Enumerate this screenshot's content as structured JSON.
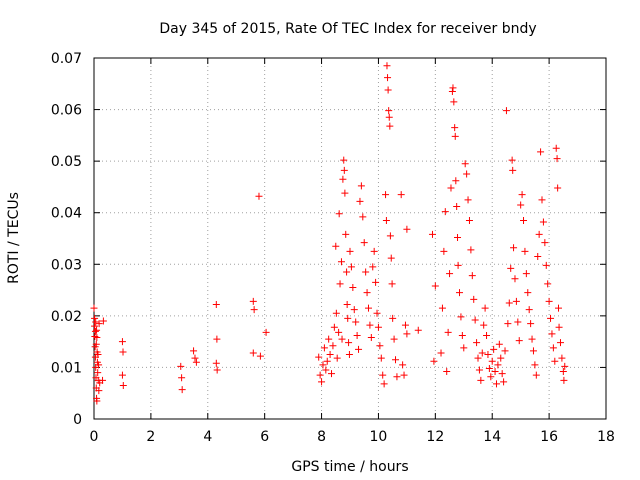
{
  "chart_data": {
    "type": "scatter",
    "title": "Day 345 of 2015, Rate Of TEC Index for receiver bndy",
    "xlabel": "GPS time / hours",
    "ylabel": "ROTI / TECUs",
    "xlim": [
      0,
      18
    ],
    "ylim": [
      0,
      0.07
    ],
    "xticks": [
      0,
      2,
      4,
      6,
      8,
      10,
      12,
      14,
      16,
      18
    ],
    "yticks": [
      0,
      0.01,
      0.02,
      0.03,
      0.04,
      0.05,
      0.06,
      0.07
    ],
    "ytick_labels": [
      "0",
      "0.01",
      "0.02",
      "0.03",
      "0.04",
      "0.05",
      "0.06",
      "0.07"
    ],
    "grid": true,
    "marker": "+",
    "color": "#ff0000",
    "series": [
      {
        "name": "ROTI",
        "points": [
          [
            0.0,
            0.0215
          ],
          [
            0.02,
            0.018
          ],
          [
            0.03,
            0.016
          ],
          [
            0.04,
            0.014
          ],
          [
            0.05,
            0.012
          ],
          [
            0.06,
            0.01
          ],
          [
            0.07,
            0.008
          ],
          [
            0.08,
            0.006
          ],
          [
            0.09,
            0.004
          ],
          [
            0.1,
            0.0035
          ],
          [
            0.02,
            0.0195
          ],
          [
            0.05,
            0.017
          ],
          [
            0.08,
            0.0145
          ],
          [
            0.11,
            0.013
          ],
          [
            0.12,
            0.011
          ],
          [
            0.13,
            0.009
          ],
          [
            0.15,
            0.0075
          ],
          [
            0.17,
            0.0055
          ],
          [
            0.06,
            0.0188
          ],
          [
            0.09,
            0.0172
          ],
          [
            0.1,
            0.0158
          ],
          [
            0.14,
            0.0125
          ],
          [
            0.16,
            0.0105
          ],
          [
            0.18,
            0.0185
          ],
          [
            0.2,
            0.007
          ],
          [
            0.3,
            0.0075
          ],
          [
            0.33,
            0.019
          ],
          [
            1.0,
            0.015
          ],
          [
            1.02,
            0.013
          ],
          [
            1.0,
            0.0085
          ],
          [
            1.03,
            0.0065
          ],
          [
            3.05,
            0.0102
          ],
          [
            3.08,
            0.008
          ],
          [
            3.1,
            0.0057
          ],
          [
            3.5,
            0.0132
          ],
          [
            3.55,
            0.0118
          ],
          [
            3.6,
            0.011
          ],
          [
            4.3,
            0.0222
          ],
          [
            4.32,
            0.0155
          ],
          [
            4.3,
            0.0108
          ],
          [
            4.33,
            0.0095
          ],
          [
            5.6,
            0.0228
          ],
          [
            5.63,
            0.0212
          ],
          [
            5.6,
            0.0128
          ],
          [
            5.8,
            0.0432
          ],
          [
            5.85,
            0.0122
          ],
          [
            6.05,
            0.0168
          ],
          [
            7.9,
            0.012
          ],
          [
            7.95,
            0.0085
          ],
          [
            8.0,
            0.0072
          ],
          [
            8.05,
            0.0105
          ],
          [
            8.1,
            0.0138
          ],
          [
            8.15,
            0.0095
          ],
          [
            8.2,
            0.0112
          ],
          [
            8.25,
            0.0155
          ],
          [
            8.3,
            0.0125
          ],
          [
            8.35,
            0.0088
          ],
          [
            8.4,
            0.0142
          ],
          [
            8.45,
            0.0178
          ],
          [
            8.5,
            0.0335
          ],
          [
            8.52,
            0.0205
          ],
          [
            8.55,
            0.0118
          ],
          [
            8.6,
            0.0168
          ],
          [
            8.62,
            0.0398
          ],
          [
            8.65,
            0.0262
          ],
          [
            8.7,
            0.0305
          ],
          [
            8.72,
            0.0155
          ],
          [
            8.75,
            0.0465
          ],
          [
            8.78,
            0.0502
          ],
          [
            8.8,
            0.0482
          ],
          [
            8.82,
            0.0438
          ],
          [
            8.85,
            0.0358
          ],
          [
            8.88,
            0.0285
          ],
          [
            8.9,
            0.0222
          ],
          [
            8.92,
            0.0195
          ],
          [
            8.95,
            0.0148
          ],
          [
            8.98,
            0.0125
          ],
          [
            9.0,
            0.0325
          ],
          [
            9.05,
            0.0295
          ],
          [
            9.1,
            0.0255
          ],
          [
            9.15,
            0.0212
          ],
          [
            9.2,
            0.0188
          ],
          [
            9.25,
            0.0162
          ],
          [
            9.3,
            0.0135
          ],
          [
            9.35,
            0.0422
          ],
          [
            9.4,
            0.0452
          ],
          [
            9.45,
            0.0392
          ],
          [
            9.5,
            0.0342
          ],
          [
            9.55,
            0.0285
          ],
          [
            9.6,
            0.0245
          ],
          [
            9.65,
            0.0215
          ],
          [
            9.7,
            0.0182
          ],
          [
            9.75,
            0.0158
          ],
          [
            9.8,
            0.0295
          ],
          [
            9.85,
            0.0325
          ],
          [
            9.9,
            0.0265
          ],
          [
            9.95,
            0.0205
          ],
          [
            10.0,
            0.0178
          ],
          [
            10.05,
            0.0142
          ],
          [
            10.1,
            0.0118
          ],
          [
            10.15,
            0.0085
          ],
          [
            10.2,
            0.0068
          ],
          [
            10.25,
            0.0435
          ],
          [
            10.28,
            0.0385
          ],
          [
            10.3,
            0.0685
          ],
          [
            10.32,
            0.0662
          ],
          [
            10.34,
            0.0638
          ],
          [
            10.36,
            0.0598
          ],
          [
            10.38,
            0.0585
          ],
          [
            10.4,
            0.0568
          ],
          [
            10.42,
            0.0355
          ],
          [
            10.45,
            0.0312
          ],
          [
            10.48,
            0.0262
          ],
          [
            10.5,
            0.0195
          ],
          [
            10.55,
            0.0155
          ],
          [
            10.6,
            0.0115
          ],
          [
            10.65,
            0.0082
          ],
          [
            10.8,
            0.0435
          ],
          [
            10.85,
            0.0105
          ],
          [
            10.9,
            0.0085
          ],
          [
            10.95,
            0.0182
          ],
          [
            11.0,
            0.0368
          ],
          [
            11.0,
            0.0165
          ],
          [
            11.4,
            0.0172
          ],
          [
            11.9,
            0.0358
          ],
          [
            11.95,
            0.0112
          ],
          [
            12.0,
            0.0258
          ],
          [
            12.2,
            0.0128
          ],
          [
            12.25,
            0.0215
          ],
          [
            12.3,
            0.0325
          ],
          [
            12.35,
            0.0402
          ],
          [
            12.4,
            0.0092
          ],
          [
            12.45,
            0.0168
          ],
          [
            12.5,
            0.0282
          ],
          [
            12.55,
            0.0448
          ],
          [
            12.6,
            0.0635
          ],
          [
            12.62,
            0.0642
          ],
          [
            12.65,
            0.0615
          ],
          [
            12.68,
            0.0565
          ],
          [
            12.7,
            0.0548
          ],
          [
            12.72,
            0.0462
          ],
          [
            12.75,
            0.0412
          ],
          [
            12.78,
            0.0352
          ],
          [
            12.8,
            0.0298
          ],
          [
            12.85,
            0.0245
          ],
          [
            12.9,
            0.0198
          ],
          [
            12.95,
            0.0162
          ],
          [
            13.0,
            0.0138
          ],
          [
            13.05,
            0.0495
          ],
          [
            13.1,
            0.0475
          ],
          [
            13.15,
            0.0425
          ],
          [
            13.2,
            0.0385
          ],
          [
            13.25,
            0.0328
          ],
          [
            13.3,
            0.0278
          ],
          [
            13.35,
            0.0232
          ],
          [
            13.4,
            0.0192
          ],
          [
            13.45,
            0.0148
          ],
          [
            13.5,
            0.0118
          ],
          [
            13.55,
            0.0095
          ],
          [
            13.6,
            0.0075
          ],
          [
            13.65,
            0.0128
          ],
          [
            13.7,
            0.0182
          ],
          [
            13.75,
            0.0215
          ],
          [
            13.8,
            0.0162
          ],
          [
            13.85,
            0.0125
          ],
          [
            13.9,
            0.0098
          ],
          [
            13.95,
            0.0082
          ],
          [
            14.0,
            0.0112
          ],
          [
            14.05,
            0.0135
          ],
          [
            14.1,
            0.0092
          ],
          [
            14.15,
            0.0068
          ],
          [
            14.2,
            0.0105
          ],
          [
            14.25,
            0.0145
          ],
          [
            14.3,
            0.0118
          ],
          [
            14.35,
            0.0088
          ],
          [
            14.4,
            0.0072
          ],
          [
            14.45,
            0.0132
          ],
          [
            14.5,
            0.0598
          ],
          [
            14.55,
            0.0185
          ],
          [
            14.6,
            0.0225
          ],
          [
            14.65,
            0.0292
          ],
          [
            14.7,
            0.0502
          ],
          [
            14.72,
            0.0482
          ],
          [
            14.75,
            0.0332
          ],
          [
            14.8,
            0.0272
          ],
          [
            14.85,
            0.0228
          ],
          [
            14.9,
            0.0188
          ],
          [
            14.95,
            0.0152
          ],
          [
            15.0,
            0.0415
          ],
          [
            15.05,
            0.0435
          ],
          [
            15.1,
            0.0385
          ],
          [
            15.15,
            0.0325
          ],
          [
            15.2,
            0.0282
          ],
          [
            15.25,
            0.0245
          ],
          [
            15.3,
            0.0212
          ],
          [
            15.35,
            0.0185
          ],
          [
            15.4,
            0.0155
          ],
          [
            15.45,
            0.0132
          ],
          [
            15.5,
            0.0105
          ],
          [
            15.55,
            0.0085
          ],
          [
            15.6,
            0.0315
          ],
          [
            15.65,
            0.0358
          ],
          [
            15.7,
            0.0518
          ],
          [
            15.75,
            0.0425
          ],
          [
            15.8,
            0.0382
          ],
          [
            15.85,
            0.0342
          ],
          [
            15.9,
            0.0298
          ],
          [
            15.95,
            0.0262
          ],
          [
            16.0,
            0.0228
          ],
          [
            16.05,
            0.0195
          ],
          [
            16.1,
            0.0165
          ],
          [
            16.15,
            0.0138
          ],
          [
            16.2,
            0.0112
          ],
          [
            16.25,
            0.0525
          ],
          [
            16.28,
            0.0505
          ],
          [
            16.3,
            0.0448
          ],
          [
            16.33,
            0.0215
          ],
          [
            16.35,
            0.0178
          ],
          [
            16.4,
            0.0148
          ],
          [
            16.45,
            0.0118
          ],
          [
            16.5,
            0.0092
          ],
          [
            16.52,
            0.0075
          ],
          [
            16.55,
            0.0102
          ]
        ]
      }
    ]
  }
}
